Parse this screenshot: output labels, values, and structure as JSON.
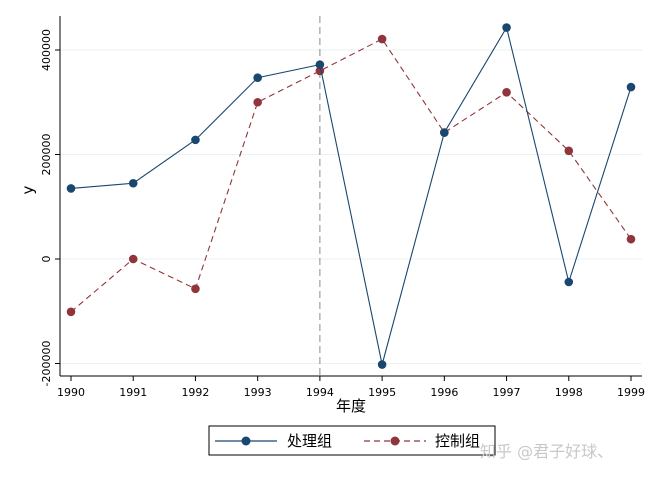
{
  "chart_data": {
    "type": "line",
    "xlabel": "年度",
    "ylabel": "y",
    "x": [
      1990,
      1991,
      1992,
      1993,
      1994,
      1995,
      1996,
      1997,
      1998,
      1999
    ],
    "x_tick_labels": [
      "1990",
      "1991",
      "1992",
      "1993",
      "1994",
      "1995",
      "1996",
      "1997",
      "1998",
      "1999"
    ],
    "xlim": [
      1990,
      1999
    ],
    "ylim": [
      -200000,
      400000
    ],
    "y_ticks": [
      -200000,
      0,
      200000,
      400000
    ],
    "y_tick_labels": [
      "-200000",
      "0",
      "200000",
      "400000"
    ],
    "grid": "horizontal",
    "reference_line": {
      "axis": "x",
      "value": 1994,
      "style": "dashed"
    },
    "legend_position": "bottom",
    "series": [
      {
        "name": "处理组",
        "color": "#1a476f",
        "line_style": "solid",
        "marker": "circle",
        "values": [
          135000,
          145000,
          228000,
          347000,
          372000,
          -202000,
          242000,
          443000,
          -44000,
          329000
        ]
      },
      {
        "name": "控制组",
        "color": "#90353b",
        "line_style": "dashed",
        "marker": "circle",
        "values": [
          -101000,
          0,
          -57000,
          300000,
          360000,
          421000,
          242000,
          319000,
          207000,
          38000
        ]
      }
    ]
  },
  "watermark": {
    "text": "知乎 @君子好球、"
  }
}
